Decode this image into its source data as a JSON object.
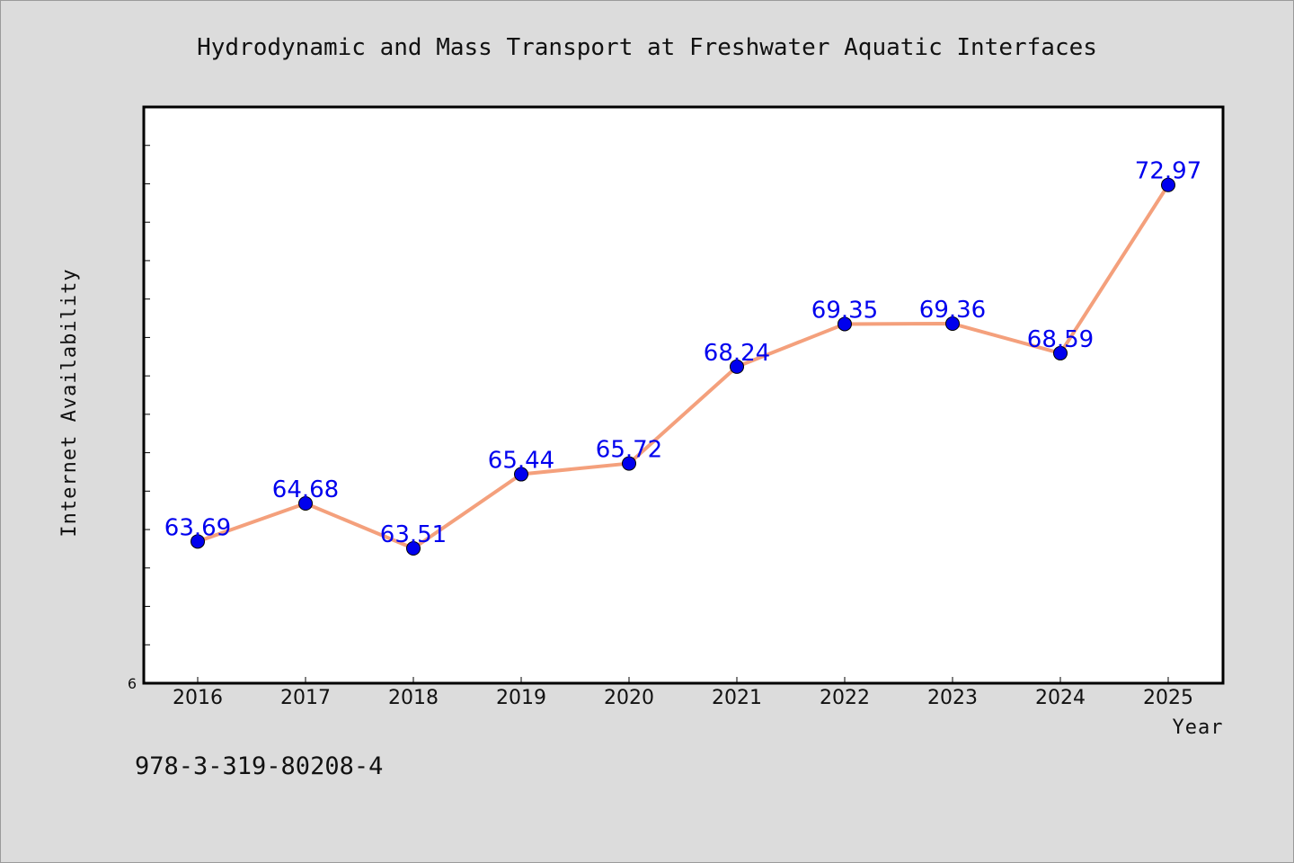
{
  "chart_data": {
    "type": "line",
    "title": "Hydrodynamic and Mass Transport at Freshwater Aquatic Interfaces",
    "xlabel": "Year",
    "ylabel": "Internet Availability",
    "categories": [
      "2016",
      "2017",
      "2018",
      "2019",
      "2020",
      "2021",
      "2022",
      "2023",
      "2024",
      "2025"
    ],
    "values": [
      63.69,
      64.68,
      63.51,
      65.44,
      65.72,
      68.24,
      69.35,
      69.36,
      68.59,
      72.97
    ],
    "value_labels": [
      "63.69",
      "64.68",
      "63.51",
      "65.44",
      "65.72",
      "68.24",
      "69.35",
      "69.36",
      "68.59",
      "72.97"
    ],
    "ylim": [
      60.0,
      75.0
    ],
    "y_tick_label": "6",
    "grid": false,
    "line_color": "#f4a07c",
    "marker_color": "#0000ee"
  },
  "footer": {
    "isbn": "978-3-319-80208-4"
  }
}
